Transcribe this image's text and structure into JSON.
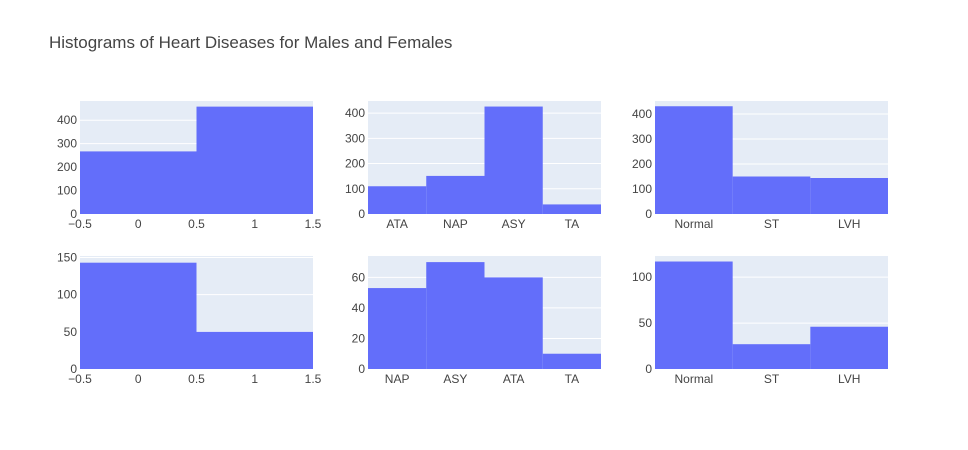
{
  "colors": {
    "bar": "#636efa",
    "plot_bg": "#e5ecf6",
    "grid": "#ffffff",
    "text": "#444444"
  },
  "chart_data": {
    "title": "Histograms of Heart Diseases for Males and Females",
    "subplots": [
      {
        "type": "bar",
        "x_kind": "numeric",
        "xlim": [
          -0.5,
          1.5
        ],
        "x_ticks": [
          "−0.5",
          "0",
          "0.5",
          "1",
          "1.5"
        ],
        "bins": [
          {
            "from": -0.5,
            "to": 0.5,
            "value": 267
          },
          {
            "from": 0.5,
            "to": 1.5,
            "value": 458
          }
        ],
        "ylim": [
          0,
          482
        ],
        "y_ticks": [
          0,
          100,
          200,
          300,
          400
        ]
      },
      {
        "type": "bar",
        "x_kind": "category",
        "categories": [
          "ATA",
          "NAP",
          "ASY",
          "TA"
        ],
        "values": [
          110,
          151,
          426,
          38
        ],
        "ylim": [
          0,
          448
        ],
        "y_ticks": [
          0,
          100,
          200,
          300,
          400
        ]
      },
      {
        "type": "bar",
        "x_kind": "category",
        "categories": [
          "Normal",
          "ST",
          "LVH"
        ],
        "values": [
          431,
          150,
          144
        ],
        "ylim": [
          0,
          452
        ],
        "y_ticks": [
          0,
          100,
          200,
          300,
          400
        ]
      },
      {
        "type": "bar",
        "x_kind": "numeric",
        "xlim": [
          -0.5,
          1.5
        ],
        "x_ticks": [
          "−0.5",
          "0",
          "0.5",
          "1",
          "1.5"
        ],
        "bins": [
          {
            "from": -0.5,
            "to": 0.5,
            "value": 143
          },
          {
            "from": 0.5,
            "to": 1.5,
            "value": 50
          }
        ],
        "ylim": [
          0,
          152
        ],
        "y_ticks": [
          0,
          50,
          100,
          150
        ]
      },
      {
        "type": "bar",
        "x_kind": "category",
        "categories": [
          "NAP",
          "ASY",
          "ATA",
          "TA"
        ],
        "values": [
          53,
          70,
          60,
          10
        ],
        "ylim": [
          0,
          74
        ],
        "y_ticks": [
          0,
          20,
          40,
          60
        ]
      },
      {
        "type": "bar",
        "x_kind": "category",
        "categories": [
          "Normal",
          "ST",
          "LVH"
        ],
        "values": [
          117,
          27,
          46
        ],
        "ylim": [
          0,
          123
        ],
        "y_ticks": [
          0,
          50,
          100
        ]
      }
    ]
  }
}
